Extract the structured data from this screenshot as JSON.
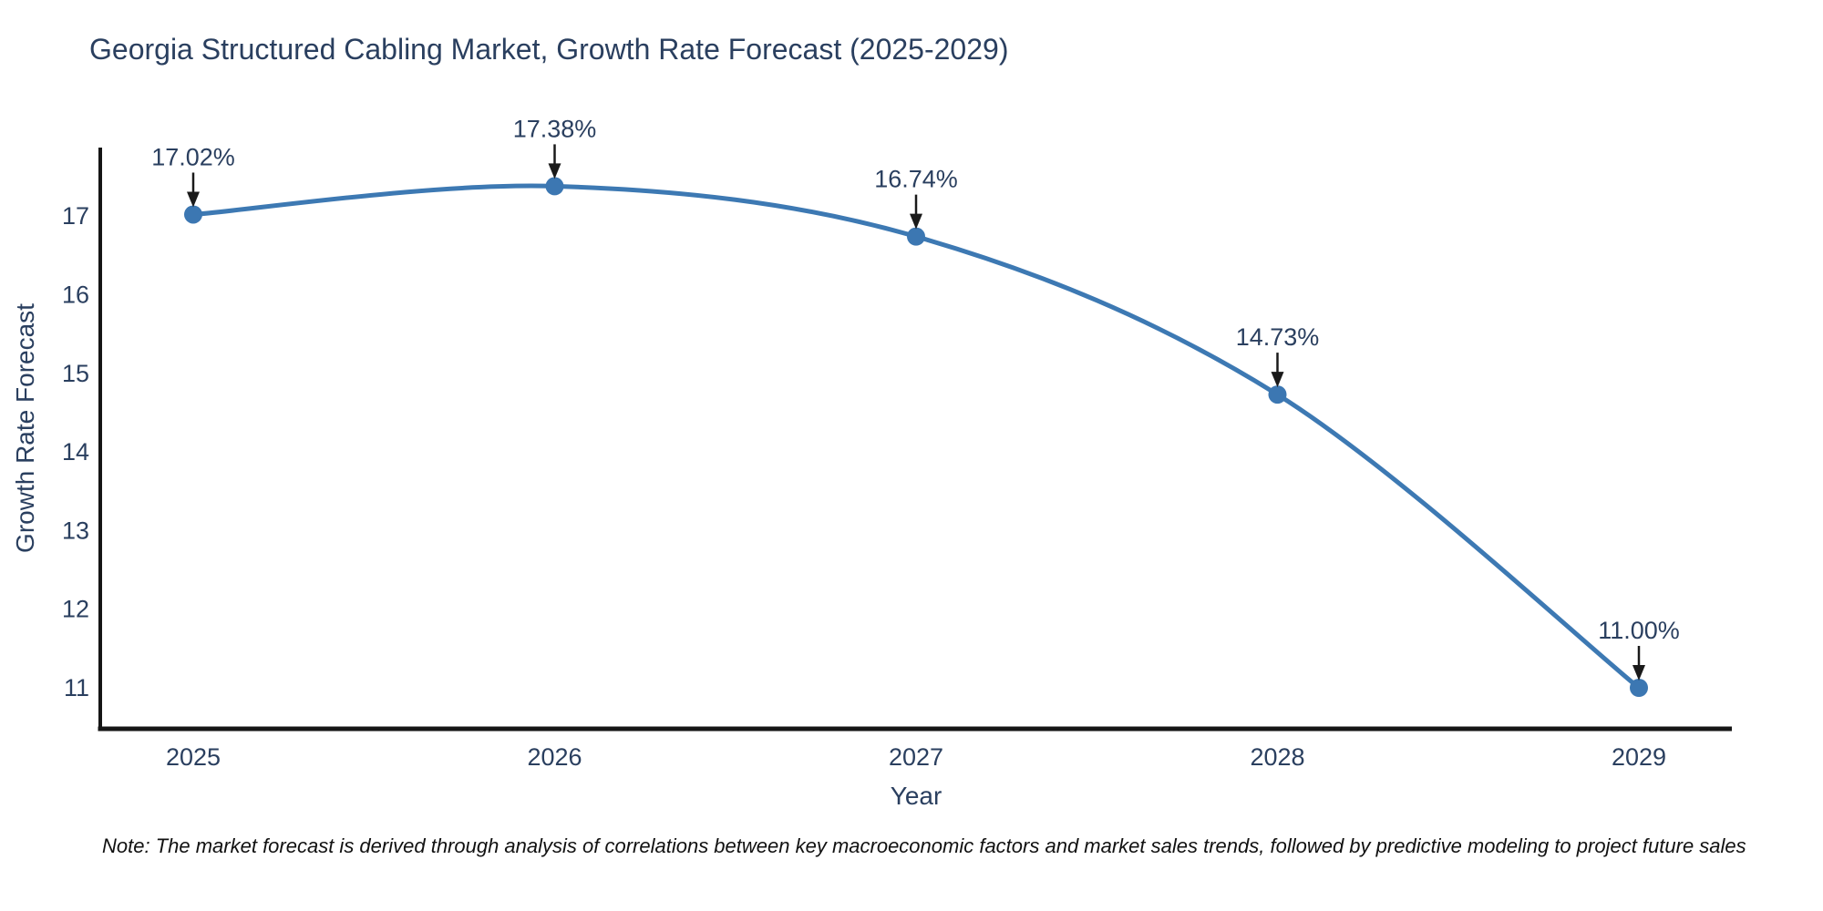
{
  "chart_data": {
    "type": "line",
    "title": "Georgia Structured Cabling Market, Growth Rate Forecast (2025-2029)",
    "xlabel": "Year",
    "ylabel": "Growth Rate Forecast",
    "x": [
      2025,
      2026,
      2027,
      2028,
      2029
    ],
    "x_tick_labels": [
      "2025",
      "2026",
      "2027",
      "2028",
      "2029"
    ],
    "y_ticks": [
      11,
      12,
      13,
      14,
      15,
      16,
      17
    ],
    "ylim": [
      10.48,
      17.87
    ],
    "grid": false,
    "legend_position": "none",
    "line_shape": "spline",
    "series": [
      {
        "name": "Growth Rate Forecast",
        "values": [
          17.02,
          17.38,
          16.74,
          14.73,
          11.0
        ],
        "point_labels": [
          "17.02%",
          "17.38%",
          "16.74%",
          "14.73%",
          "11.00%"
        ]
      }
    ],
    "colors": {
      "line": "#3d79b3",
      "marker": "#3c77b2",
      "axis": "#151515",
      "text": "#2a3f5f",
      "annotation_arrow": "#1a1a1a"
    }
  },
  "note": {
    "text": "Note: The market forecast is derived through analysis of correlations between key macroeconomic factors and market sales trends, followed by predictive modeling to project future sales"
  }
}
